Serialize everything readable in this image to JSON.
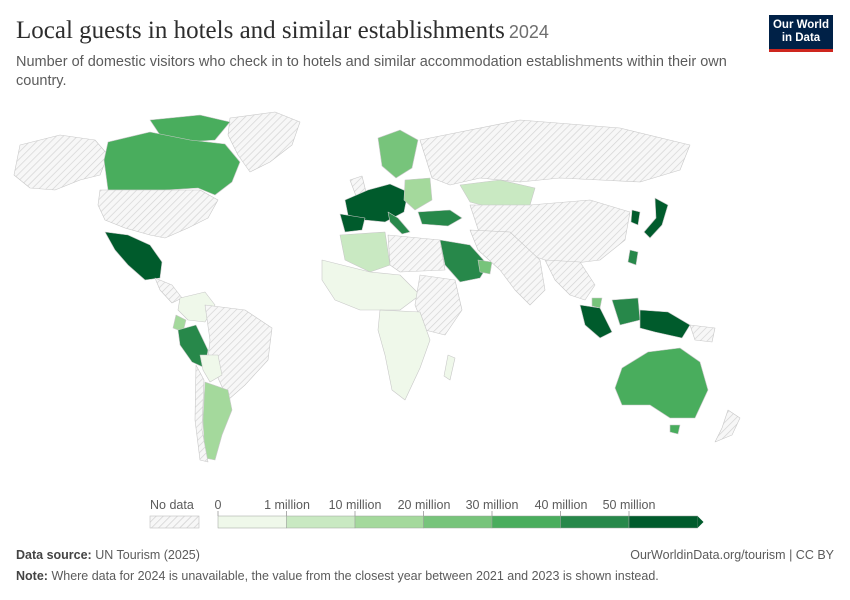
{
  "header": {
    "title": "Local guests in hotels and similar establishments",
    "year": "2024",
    "subtitle": "Number of domestic visitors who check in to hotels and similar accommodation establishments within their own country."
  },
  "logo": {
    "line1": "Our World",
    "line2": "in Data"
  },
  "legend": {
    "no_data_label": "No data",
    "thresholds": [
      "0",
      "1 million",
      "10 million",
      "20 million",
      "30 million",
      "40 million",
      "50 million"
    ],
    "colors": [
      "#eff8ea",
      "#c9e9c2",
      "#a4d99c",
      "#77c47b",
      "#49ad5d",
      "#27884a",
      "#005b2c"
    ],
    "no_data_color": "#ececec"
  },
  "footer": {
    "source_label": "Data source:",
    "source_value": "UN Tourism (2025)",
    "link": "OurWorldinData.org/tourism | CC BY",
    "note_label": "Note:",
    "note_value": "Where data for 2024 is unavailable, the value from the closest year between 2021 and 2023 is shown instead."
  }
}
